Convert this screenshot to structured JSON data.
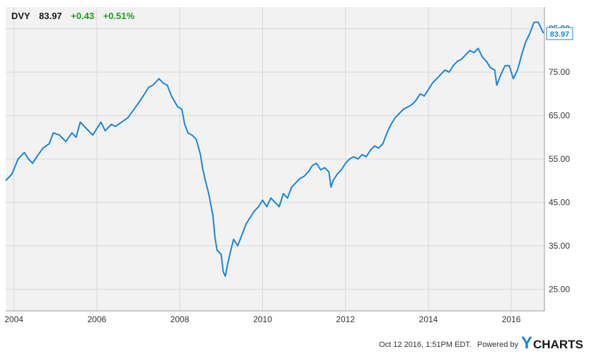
{
  "header": {
    "ticker": "DVY",
    "price": "83.97",
    "change": "+0.43",
    "change_pct": "+0.51%"
  },
  "colors": {
    "line": "#1a86d8",
    "plot_bg": "#f2f2f2",
    "grid": "#d8d8d8",
    "positive": "#1e9c1e",
    "logo_accent": "#1a86d8"
  },
  "footer": {
    "timestamp": "Oct 12 2016, 1:51PM EDT.",
    "powered_by": "Powered by",
    "logo_y": "Y",
    "logo_rest": "CHARTS"
  },
  "chart_data": {
    "type": "line",
    "title": "",
    "xlabel": "",
    "ylabel": "",
    "grid": true,
    "xlim": [
      2003.8,
      2016.8
    ],
    "ylim": [
      20,
      90
    ],
    "x_ticks": [
      {
        "value": 2004,
        "label": "2004"
      },
      {
        "value": 2006,
        "label": "2006"
      },
      {
        "value": 2008,
        "label": "2008"
      },
      {
        "value": 2010,
        "label": "2010"
      },
      {
        "value": 2012,
        "label": "2012"
      },
      {
        "value": 2014,
        "label": "2014"
      },
      {
        "value": 2016,
        "label": "2016"
      }
    ],
    "y_ticks": [
      {
        "value": 25,
        "label": "25.00"
      },
      {
        "value": 35,
        "label": "35.00"
      },
      {
        "value": 45,
        "label": "45.00"
      },
      {
        "value": 55,
        "label": "55.00"
      },
      {
        "value": 65,
        "label": "65.00"
      },
      {
        "value": 75,
        "label": "75.00"
      },
      {
        "value": 85,
        "label": "85.00"
      }
    ],
    "last_value_label": "83.97",
    "series": [
      {
        "name": "",
        "x": [
          2003.8,
          2003.95,
          2004.1,
          2004.25,
          2004.35,
          2004.45,
          2004.55,
          2004.7,
          2004.85,
          2004.95,
          2005.1,
          2005.25,
          2005.4,
          2005.5,
          2005.6,
          2005.75,
          2005.9,
          2006.0,
          2006.1,
          2006.2,
          2006.35,
          2006.45,
          2006.6,
          2006.75,
          2006.9,
          2007.05,
          2007.15,
          2007.25,
          2007.35,
          2007.5,
          2007.6,
          2007.7,
          2007.8,
          2007.95,
          2008.05,
          2008.12,
          2008.2,
          2008.3,
          2008.4,
          2008.5,
          2008.55,
          2008.62,
          2008.7,
          2008.75,
          2008.8,
          2008.85,
          2008.9,
          2009.0,
          2009.05,
          2009.1,
          2009.15,
          2009.22,
          2009.3,
          2009.4,
          2009.5,
          2009.6,
          2009.7,
          2009.8,
          2009.9,
          2010.0,
          2010.1,
          2010.2,
          2010.3,
          2010.4,
          2010.5,
          2010.6,
          2010.7,
          2010.8,
          2010.9,
          2011.0,
          2011.1,
          2011.2,
          2011.3,
          2011.4,
          2011.5,
          2011.6,
          2011.65,
          2011.7,
          2011.8,
          2011.9,
          2012.0,
          2012.1,
          2012.2,
          2012.3,
          2012.4,
          2012.5,
          2012.6,
          2012.7,
          2012.8,
          2012.9,
          2013.0,
          2013.1,
          2013.2,
          2013.3,
          2013.4,
          2013.5,
          2013.6,
          2013.7,
          2013.8,
          2013.9,
          2014.0,
          2014.1,
          2014.2,
          2014.3,
          2014.4,
          2014.5,
          2014.6,
          2014.7,
          2014.8,
          2014.9,
          2015.0,
          2015.1,
          2015.2,
          2015.3,
          2015.4,
          2015.5,
          2015.6,
          2015.65,
          2015.75,
          2015.85,
          2015.95,
          2016.05,
          2016.15,
          2016.25,
          2016.35,
          2016.45,
          2016.55,
          2016.65,
          2016.75,
          2016.78
        ],
        "values": [
          50.0,
          51.5,
          55.0,
          56.5,
          55.0,
          54.0,
          55.5,
          57.5,
          58.5,
          61.0,
          60.5,
          59.0,
          61.0,
          60.0,
          63.5,
          62.0,
          60.5,
          62.0,
          63.5,
          61.5,
          63.0,
          62.5,
          63.5,
          64.5,
          66.5,
          68.5,
          70.0,
          71.5,
          72.0,
          73.5,
          72.5,
          72.0,
          69.5,
          67.0,
          66.5,
          63.0,
          61.0,
          60.5,
          59.5,
          56.0,
          53.0,
          50.0,
          47.0,
          44.5,
          42.0,
          37.0,
          34.0,
          33.0,
          29.0,
          28.0,
          30.5,
          33.5,
          36.5,
          35.0,
          37.5,
          40.0,
          41.5,
          43.0,
          44.0,
          45.5,
          44.0,
          46.0,
          45.0,
          44.0,
          47.0,
          46.0,
          48.5,
          49.5,
          50.5,
          51.0,
          52.0,
          53.5,
          54.0,
          52.5,
          53.0,
          52.0,
          48.5,
          50.0,
          51.5,
          52.5,
          54.0,
          55.0,
          55.5,
          55.0,
          56.0,
          55.5,
          57.0,
          58.0,
          57.5,
          58.5,
          61.0,
          63.0,
          64.5,
          65.5,
          66.5,
          67.0,
          67.5,
          68.5,
          70.0,
          69.5,
          71.0,
          72.5,
          73.5,
          74.5,
          75.5,
          75.0,
          76.5,
          77.5,
          78.0,
          79.0,
          80.0,
          79.5,
          80.5,
          78.5,
          77.5,
          76.0,
          75.5,
          72.0,
          74.5,
          76.5,
          76.5,
          73.5,
          75.5,
          79.0,
          82.0,
          84.0,
          86.5,
          86.5,
          84.5,
          83.97
        ]
      }
    ]
  }
}
